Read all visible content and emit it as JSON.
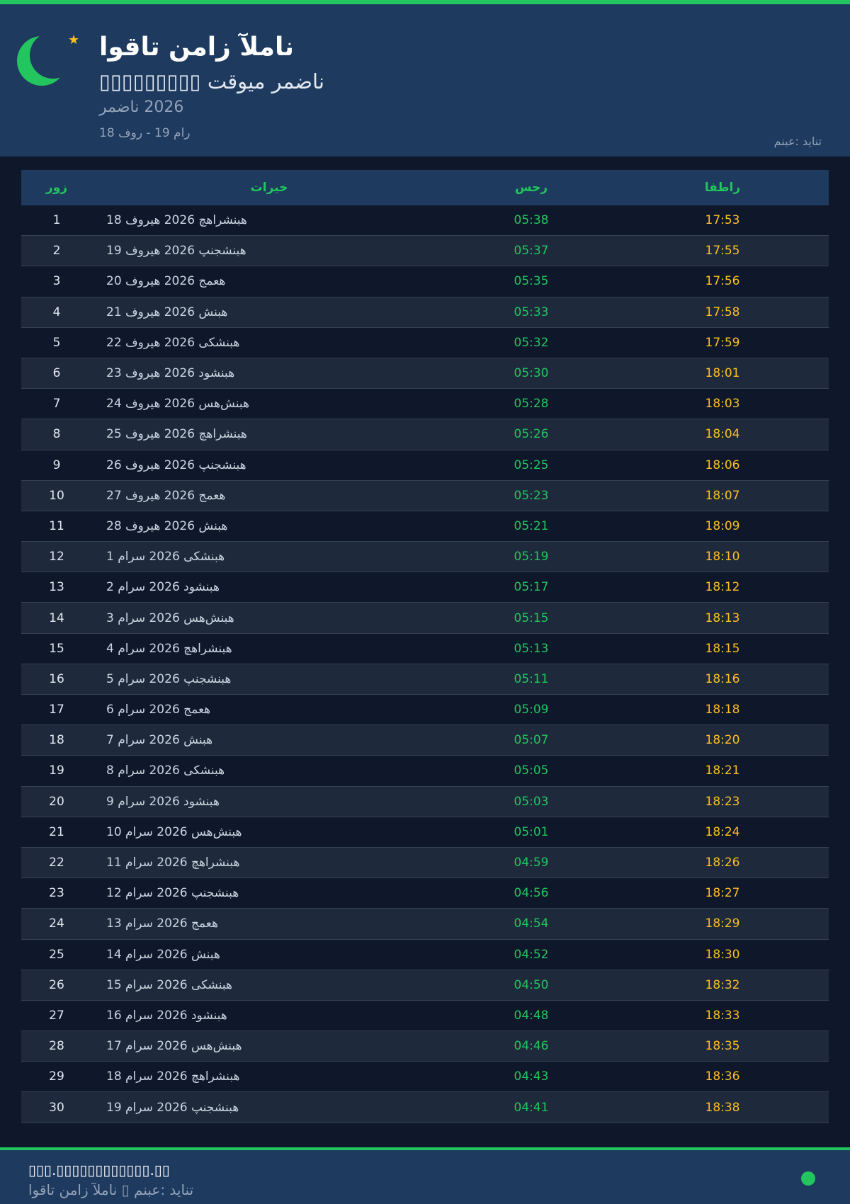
{
  "colors": {
    "accent": "#22c55e",
    "iftar": "#fbbf24",
    "header_bg": "#1e3a5f",
    "page_bg": "#0f172a"
  },
  "header": {
    "icon": "crescent-moon-icon",
    "star_icon": "star-icon",
    "title": "اوقات نماز آلمان",
    "subtitle": "▯▯▯▯▯▯▯▯▯ تقویم رمضان",
    "year": "رمضان 2026",
    "range": "18 فور - 19 مار",
    "source": "منبع: دیانت"
  },
  "table": {
    "columns": {
      "day": "روز",
      "date": "تاریخ",
      "sahar": "سحر",
      "iftar": "افطار"
    },
    "rows": [
      {
        "day": "1",
        "date": "18 فوریه 2026 چهارشنبه",
        "sahar": "05:38",
        "iftar": "17:53"
      },
      {
        "day": "2",
        "date": "19 فوریه 2026 پنجشنبه",
        "sahar": "05:37",
        "iftar": "17:55"
      },
      {
        "day": "3",
        "date": "20 فوریه 2026 جمعه",
        "sahar": "05:35",
        "iftar": "17:56"
      },
      {
        "day": "4",
        "date": "21 فوریه 2026 شنبه",
        "sahar": "05:33",
        "iftar": "17:58"
      },
      {
        "day": "5",
        "date": "22 فوریه 2026 یکشنبه",
        "sahar": "05:32",
        "iftar": "17:59"
      },
      {
        "day": "6",
        "date": "23 فوریه 2026 دوشنبه",
        "sahar": "05:30",
        "iftar": "18:01"
      },
      {
        "day": "7",
        "date": "24 فوریه 2026 سه‌شنبه",
        "sahar": "05:28",
        "iftar": "18:03"
      },
      {
        "day": "8",
        "date": "25 فوریه 2026 چهارشنبه",
        "sahar": "05:26",
        "iftar": "18:04"
      },
      {
        "day": "9",
        "date": "26 فوریه 2026 پنجشنبه",
        "sahar": "05:25",
        "iftar": "18:06"
      },
      {
        "day": "10",
        "date": "27 فوریه 2026 جمعه",
        "sahar": "05:23",
        "iftar": "18:07"
      },
      {
        "day": "11",
        "date": "28 فوریه 2026 شنبه",
        "sahar": "05:21",
        "iftar": "18:09"
      },
      {
        "day": "12",
        "date": "1 مارس 2026 یکشنبه",
        "sahar": "05:19",
        "iftar": "18:10"
      },
      {
        "day": "13",
        "date": "2 مارس 2026 دوشنبه",
        "sahar": "05:17",
        "iftar": "18:12"
      },
      {
        "day": "14",
        "date": "3 مارس 2026 سه‌شنبه",
        "sahar": "05:15",
        "iftar": "18:13"
      },
      {
        "day": "15",
        "date": "4 مارس 2026 چهارشنبه",
        "sahar": "05:13",
        "iftar": "18:15"
      },
      {
        "day": "16",
        "date": "5 مارس 2026 پنجشنبه",
        "sahar": "05:11",
        "iftar": "18:16"
      },
      {
        "day": "17",
        "date": "6 مارس 2026 جمعه",
        "sahar": "05:09",
        "iftar": "18:18"
      },
      {
        "day": "18",
        "date": "7 مارس 2026 شنبه",
        "sahar": "05:07",
        "iftar": "18:20"
      },
      {
        "day": "19",
        "date": "8 مارس 2026 یکشنبه",
        "sahar": "05:05",
        "iftar": "18:21"
      },
      {
        "day": "20",
        "date": "9 مارس 2026 دوشنبه",
        "sahar": "05:03",
        "iftar": "18:23"
      },
      {
        "day": "21",
        "date": "10 مارس 2026 سه‌شنبه",
        "sahar": "05:01",
        "iftar": "18:24"
      },
      {
        "day": "22",
        "date": "11 مارس 2026 چهارشنبه",
        "sahar": "04:59",
        "iftar": "18:26"
      },
      {
        "day": "23",
        "date": "12 مارس 2026 پنجشنبه",
        "sahar": "04:56",
        "iftar": "18:27"
      },
      {
        "day": "24",
        "date": "13 مارس 2026 جمعه",
        "sahar": "04:54",
        "iftar": "18:29"
      },
      {
        "day": "25",
        "date": "14 مارس 2026 شنبه",
        "sahar": "04:52",
        "iftar": "18:30"
      },
      {
        "day": "26",
        "date": "15 مارس 2026 یکشنبه",
        "sahar": "04:50",
        "iftar": "18:32"
      },
      {
        "day": "27",
        "date": "16 مارس 2026 دوشنبه",
        "sahar": "04:48",
        "iftar": "18:33"
      },
      {
        "day": "28",
        "date": "17 مارس 2026 سه‌شنبه",
        "sahar": "04:46",
        "iftar": "18:35"
      },
      {
        "day": "29",
        "date": "18 مارس 2026 چهارشنبه",
        "sahar": "04:43",
        "iftar": "18:36"
      },
      {
        "day": "30",
        "date": "19 مارس 2026 پنجشنبه",
        "sahar": "04:41",
        "iftar": "18:38"
      }
    ]
  },
  "footer": {
    "url": "▯▯▯.▯▯▯▯▯▯▯▯▯▯▯▯.▯▯",
    "source": "اوقات نماز آلمان ▯ منبع: دیانت",
    "status_icon": "status-dot-icon"
  }
}
